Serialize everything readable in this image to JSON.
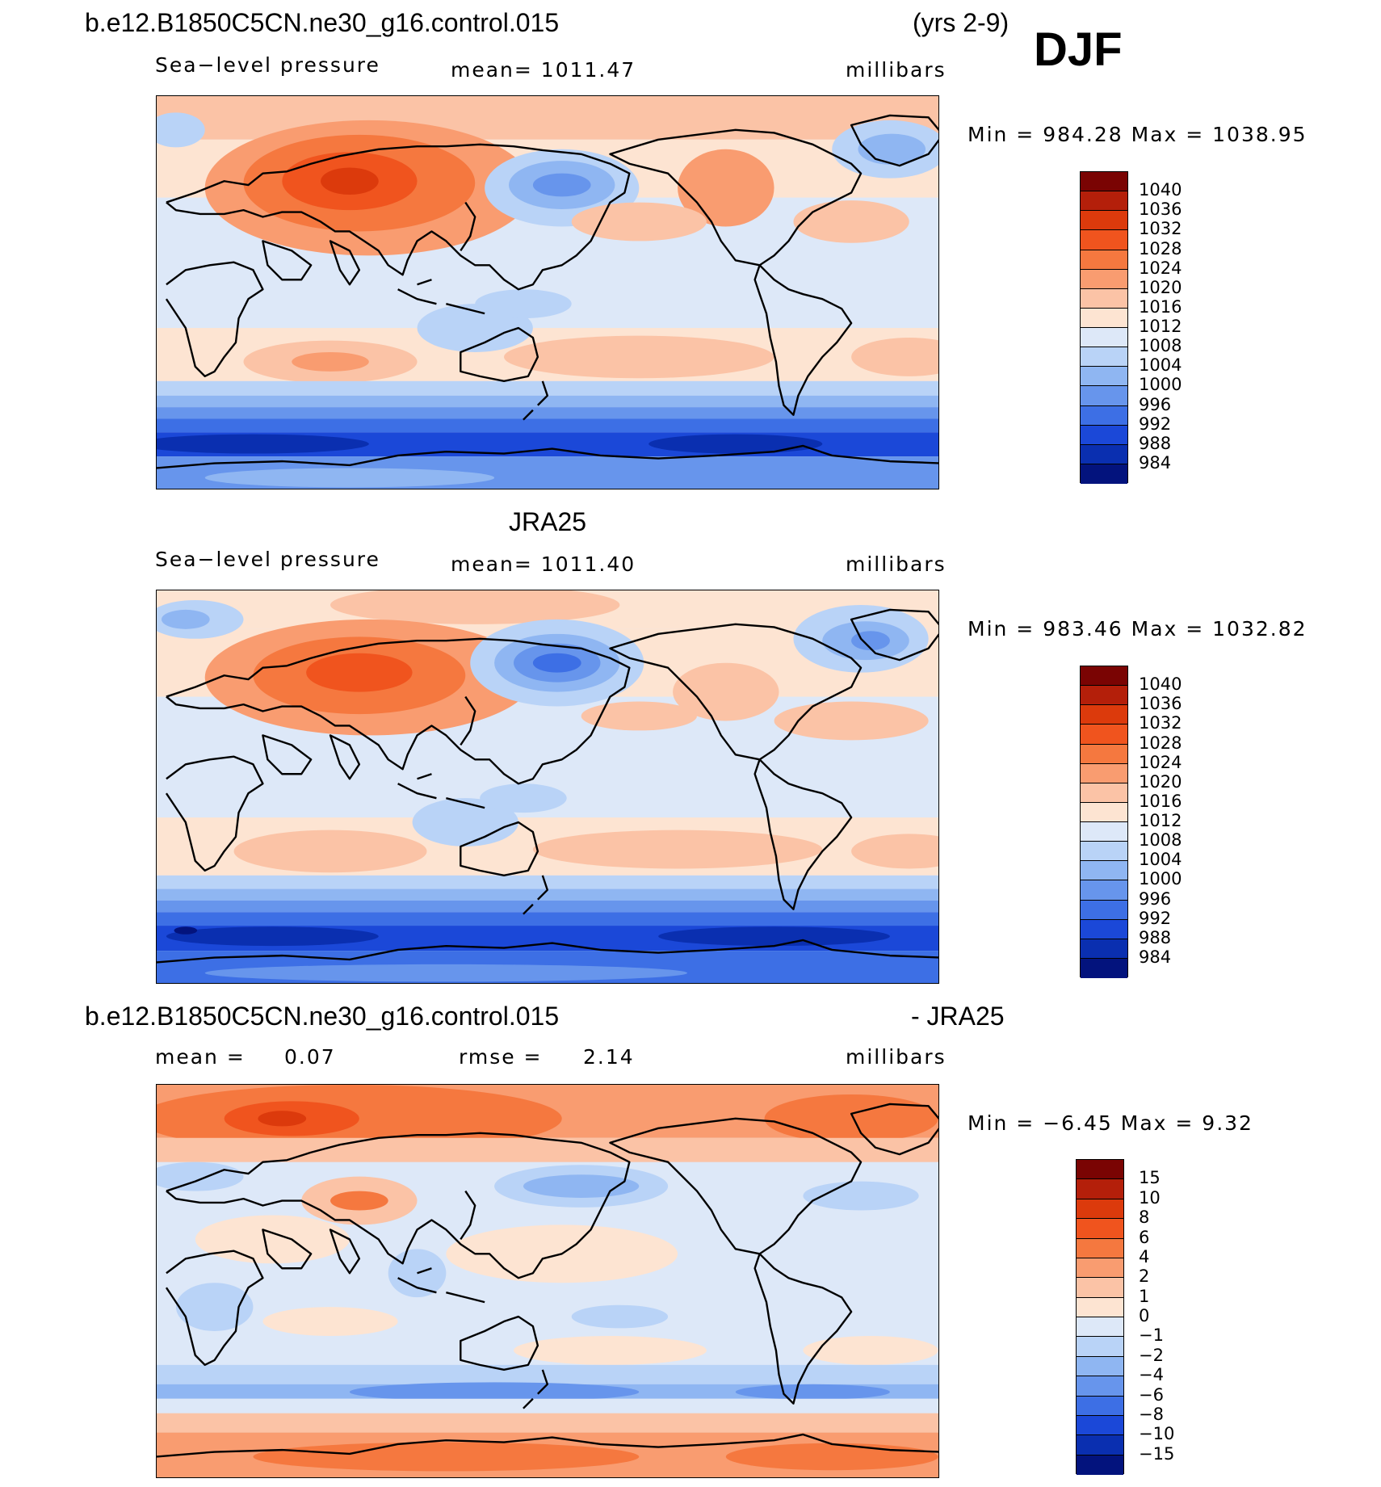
{
  "season": "DJF",
  "years": "(yrs 2-9)",
  "panel1": {
    "case": "b.e12.B1850C5CN.ne30_g16.control.015",
    "variable": "Sea−level pressure",
    "mean_label": "mean=  1011.47",
    "units": "millibars",
    "minmax": "Min  =  984.28  Max  =  1038.95"
  },
  "panel2": {
    "title": "JRA25",
    "variable": "Sea−level pressure",
    "mean_label": "mean=  1011.40",
    "units": "millibars",
    "minmax": "Min  =  983.46  Max  =  1032.82"
  },
  "panel3": {
    "case": "b.e12.B1850C5CN.ne30_g16.control.015",
    "minus": "- JRA25",
    "mean_label": "mean  =",
    "mean_value": "0.07",
    "rmse_label": "rmse  =",
    "rmse_value": "2.14",
    "units": "millibars",
    "minmax": "Min  =   −6.45  Max  =     9.32"
  },
  "colorbar_slp": {
    "labels": [
      "1040",
      "1036",
      "1032",
      "1028",
      "1024",
      "1020",
      "1016",
      "1012",
      "1008",
      "1004",
      "1000",
      "996",
      "992",
      "988",
      "984"
    ],
    "colors": [
      "#7a0403",
      "#b41f0a",
      "#dc3a0c",
      "#f0541e",
      "#f5783f",
      "#f99c70",
      "#fbc3a6",
      "#fde4d2",
      "#dde8f8",
      "#b9d3f7",
      "#8fb6f2",
      "#6795ec",
      "#3d6fe5",
      "#1b48d8",
      "#0a2fb0",
      "#03137d"
    ]
  },
  "colorbar_diff": {
    "labels": [
      "15",
      "10",
      "8",
      "6",
      "4",
      "2",
      "1",
      "0",
      "−1",
      "−2",
      "−4",
      "−6",
      "−8",
      "−10",
      "−15"
    ],
    "colors": [
      "#7a0403",
      "#b41f0a",
      "#dc3a0c",
      "#f0541e",
      "#f5783f",
      "#f99c70",
      "#fbc3a6",
      "#fde4d2",
      "#dde8f8",
      "#b9d3f7",
      "#8fb6f2",
      "#6795ec",
      "#3d6fe5",
      "#1b48d8",
      "#0a2fb0",
      "#03137d"
    ]
  }
}
